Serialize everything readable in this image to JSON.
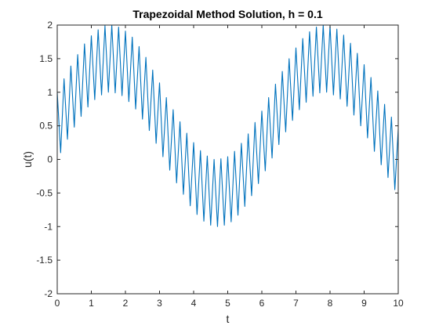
{
  "chart_data": {
    "type": "line",
    "title": "Trapezoidal Method Solution, h = 0.1",
    "xlabel": "t",
    "ylabel": "u(t)",
    "xlim": [
      0,
      10
    ],
    "ylim": [
      -2,
      2
    ],
    "xticks": [
      "0",
      "1",
      "2",
      "3",
      "4",
      "5",
      "6",
      "7",
      "8",
      "9",
      "10"
    ],
    "yticks": [
      "2",
      "1.5",
      "1",
      "0.5",
      "0",
      "-0.5",
      "-1",
      "-1.5",
      "-2"
    ],
    "grid": false,
    "box": true,
    "line_color": "#0072BD",
    "series": [
      {
        "x": [
          0.0,
          0.1,
          0.2,
          0.3,
          0.4,
          0.5,
          0.6,
          0.7,
          0.8,
          0.9,
          1.0,
          1.1,
          1.2,
          1.3,
          1.4,
          1.5,
          1.6,
          1.7,
          1.8,
          1.9,
          2.0,
          2.1,
          2.2,
          2.3,
          2.4,
          2.5,
          2.6,
          2.7,
          2.8,
          2.9,
          3.0,
          3.1,
          3.2,
          3.3,
          3.4,
          3.5,
          3.6,
          3.7,
          3.8,
          3.9,
          4.0,
          4.1,
          4.2,
          4.3,
          4.4,
          4.5,
          4.6,
          4.7,
          4.8,
          4.9,
          5.0,
          5.1,
          5.2,
          5.3,
          5.4,
          5.5,
          5.6,
          5.7,
          5.8,
          5.9,
          6.0,
          6.1,
          6.2,
          6.3,
          6.4,
          6.5,
          6.6,
          6.7,
          6.8,
          6.9,
          7.0,
          7.1,
          7.2,
          7.3,
          7.4,
          7.5,
          7.6,
          7.7,
          7.8,
          7.9,
          8.0,
          8.1,
          8.2,
          8.3,
          8.4,
          8.5,
          8.6,
          8.7,
          8.8,
          8.9,
          9.0,
          9.1,
          9.2,
          9.3,
          9.4,
          9.5,
          9.6,
          9.7,
          9.8,
          9.9,
          10.0
        ],
        "y": [
          1.0,
          0.1,
          1.2,
          0.3,
          1.39,
          0.48,
          1.56,
          0.64,
          1.72,
          0.78,
          1.84,
          0.89,
          1.93,
          0.96,
          1.99,
          1.0,
          2.0,
          0.99,
          1.97,
          0.95,
          1.91,
          0.86,
          1.82,
          0.75,
          1.68,
          0.6,
          1.52,
          0.43,
          1.33,
          0.24,
          1.14,
          0.04,
          0.92,
          -0.16,
          0.74,
          -0.35,
          0.56,
          -0.52,
          0.39,
          -0.69,
          0.25,
          -0.82,
          0.13,
          -0.92,
          0.05,
          -0.98,
          0.0,
          -1.0,
          0.01,
          -0.98,
          0.04,
          -0.93,
          0.12,
          -0.83,
          0.24,
          -0.7,
          0.38,
          -0.54,
          0.55,
          -0.36,
          0.72,
          -0.17,
          0.92,
          0.02,
          1.12,
          0.22,
          1.31,
          0.41,
          1.5,
          0.58,
          1.66,
          0.74,
          1.8,
          0.85,
          1.9,
          0.94,
          1.97,
          0.99,
          2.0,
          1.0,
          1.99,
          0.96,
          1.94,
          0.9,
          1.85,
          0.79,
          1.73,
          0.66,
          1.58,
          0.5,
          1.41,
          0.32,
          1.22,
          0.12,
          1.02,
          -0.08,
          0.82,
          -0.27,
          0.63,
          -0.45,
          0.45
        ]
      }
    ]
  }
}
